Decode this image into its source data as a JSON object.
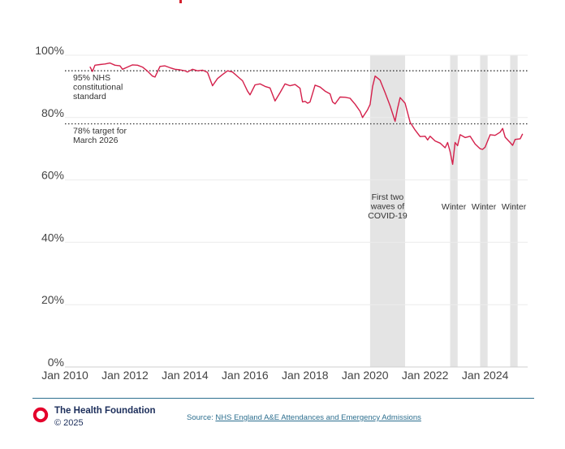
{
  "chart_data": {
    "type": "line",
    "title": "",
    "xlabel": "",
    "ylabel": "",
    "ylim": [
      0,
      100
    ],
    "xlim": [
      "2010-01",
      "2025-06"
    ],
    "y_ticks": [
      "0%",
      "20%",
      "40%",
      "60%",
      "80%",
      "100%"
    ],
    "x_ticks": [
      "Jan 2010",
      "Jan 2012",
      "Jan 2014",
      "Jan 2016",
      "Jan 2018",
      "Jan 2020",
      "Jan 2022",
      "Jan 2024"
    ],
    "grid": "horizontal",
    "series": [
      {
        "name": "",
        "color": "#d4204b",
        "points": [
          [
            "2010-11",
            96.3
          ],
          [
            "2010-12",
            94.8
          ],
          [
            "2011-01",
            96.8
          ],
          [
            "2011-03",
            97.0
          ],
          [
            "2011-05",
            97.2
          ],
          [
            "2011-07",
            97.5
          ],
          [
            "2011-09",
            96.8
          ],
          [
            "2011-11",
            96.6
          ],
          [
            "2011-12",
            95.5
          ],
          [
            "2012-02",
            96.2
          ],
          [
            "2012-04",
            96.9
          ],
          [
            "2012-06",
            96.8
          ],
          [
            "2012-08",
            96.2
          ],
          [
            "2012-10",
            94.9
          ],
          [
            "2012-12",
            93.3
          ],
          [
            "2013-01",
            93.0
          ],
          [
            "2013-03",
            96.4
          ],
          [
            "2013-05",
            96.6
          ],
          [
            "2013-07",
            96.0
          ],
          [
            "2013-09",
            95.5
          ],
          [
            "2013-11",
            95.3
          ],
          [
            "2014-01",
            95.0
          ],
          [
            "2014-02",
            94.6
          ],
          [
            "2014-04",
            95.5
          ],
          [
            "2014-06",
            95.0
          ],
          [
            "2014-08",
            95.2
          ],
          [
            "2014-10",
            94.5
          ],
          [
            "2014-12",
            90.2
          ],
          [
            "2015-02",
            92.5
          ],
          [
            "2015-04",
            93.8
          ],
          [
            "2015-06",
            95.0
          ],
          [
            "2015-08",
            94.6
          ],
          [
            "2015-10",
            93.2
          ],
          [
            "2015-12",
            91.8
          ],
          [
            "2016-02",
            88.5
          ],
          [
            "2016-03",
            87.3
          ],
          [
            "2016-05",
            90.5
          ],
          [
            "2016-07",
            90.8
          ],
          [
            "2016-09",
            90.0
          ],
          [
            "2016-11",
            89.5
          ],
          [
            "2017-01",
            85.3
          ],
          [
            "2017-03",
            88.0
          ],
          [
            "2017-05",
            90.8
          ],
          [
            "2017-07",
            90.2
          ],
          [
            "2017-09",
            90.6
          ],
          [
            "2017-11",
            89.4
          ],
          [
            "2017-12",
            85.0
          ],
          [
            "2018-01",
            85.2
          ],
          [
            "2018-02",
            84.6
          ],
          [
            "2018-03",
            85.0
          ],
          [
            "2018-05",
            90.4
          ],
          [
            "2018-07",
            89.8
          ],
          [
            "2018-09",
            88.5
          ],
          [
            "2018-11",
            87.6
          ],
          [
            "2018-12",
            85.0
          ],
          [
            "2019-01",
            84.4
          ],
          [
            "2019-03",
            86.6
          ],
          [
            "2019-05",
            86.5
          ],
          [
            "2019-07",
            86.2
          ],
          [
            "2019-09",
            84.3
          ],
          [
            "2019-11",
            82.0
          ],
          [
            "2019-12",
            80.0
          ],
          [
            "2020-02",
            82.5
          ],
          [
            "2020-03",
            84.2
          ],
          [
            "2020-04",
            90.0
          ],
          [
            "2020-05",
            93.3
          ],
          [
            "2020-07",
            92.0
          ],
          [
            "2020-09",
            88.0
          ],
          [
            "2020-11",
            83.8
          ],
          [
            "2021-01",
            78.8
          ],
          [
            "2021-02",
            83.0
          ],
          [
            "2021-03",
            86.4
          ],
          [
            "2021-05",
            84.6
          ],
          [
            "2021-07",
            78.5
          ],
          [
            "2021-09",
            76.0
          ],
          [
            "2021-11",
            73.9
          ],
          [
            "2022-01",
            74.0
          ],
          [
            "2022-02",
            72.8
          ],
          [
            "2022-03",
            74.0
          ],
          [
            "2022-05",
            72.5
          ],
          [
            "2022-07",
            71.8
          ],
          [
            "2022-09",
            70.3
          ],
          [
            "2022-10",
            72.0
          ],
          [
            "2022-11",
            69.0
          ],
          [
            "2022-12",
            65.0
          ],
          [
            "2023-01",
            72.0
          ],
          [
            "2023-02",
            71.0
          ],
          [
            "2023-03",
            74.5
          ],
          [
            "2023-05",
            73.6
          ],
          [
            "2023-07",
            74.0
          ],
          [
            "2023-09",
            71.5
          ],
          [
            "2023-11",
            70.0
          ],
          [
            "2023-12",
            69.8
          ],
          [
            "2024-01",
            70.5
          ],
          [
            "2024-03",
            74.5
          ],
          [
            "2024-05",
            74.3
          ],
          [
            "2024-07",
            75.3
          ],
          [
            "2024-08",
            76.5
          ],
          [
            "2024-09",
            73.7
          ],
          [
            "2024-11",
            72.0
          ],
          [
            "2024-12",
            71.1
          ],
          [
            "2025-01",
            73.0
          ],
          [
            "2025-03",
            73.2
          ],
          [
            "2025-04",
            74.8
          ]
        ]
      }
    ],
    "reference_lines": [
      {
        "y": 95,
        "label_lines": [
          "95% NHS",
          "constitutional",
          "standard"
        ]
      },
      {
        "y": 78,
        "label_lines": [
          "78% target for",
          "March 2026"
        ]
      }
    ],
    "shaded_periods": [
      {
        "start": "2020-03",
        "end": "2021-05",
        "label_lines": [
          "First two",
          "waves of",
          "COVID-19"
        ]
      },
      {
        "start": "2022-11",
        "end": "2023-02",
        "label_lines": [
          "Winter"
        ]
      },
      {
        "start": "2023-11",
        "end": "2024-02",
        "label_lines": [
          "Winter"
        ]
      },
      {
        "start": "2024-11",
        "end": "2025-02",
        "label_lines": [
          "Winter"
        ]
      }
    ]
  },
  "footer": {
    "org_name": "The Health Foundation",
    "copyright": "© 2025",
    "source_prefix": "Source: ",
    "source_link": "NHS England A&E Attendances and Emergency Admissions"
  },
  "colors": {
    "line": "#d4204b",
    "shade": "#e4e4e4",
    "grid": "#ebebeb",
    "brand": "#1b2d5a",
    "logo": "#e4002b",
    "rule": "#2d6f8f"
  }
}
